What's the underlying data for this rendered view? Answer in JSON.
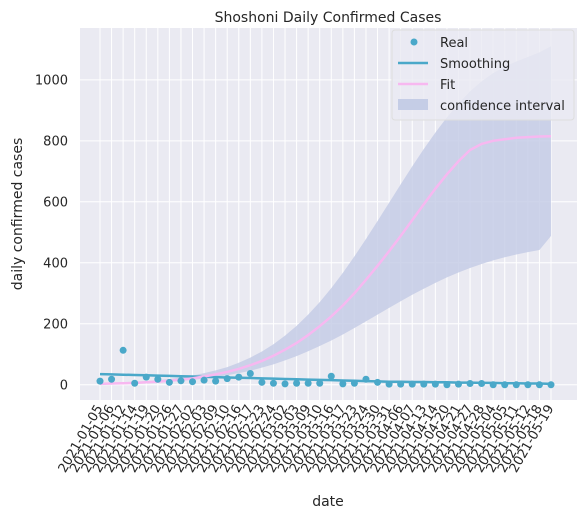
{
  "chart_data": {
    "type": "scatter",
    "title": "Shoshoni Daily Confirmed Cases",
    "xlabel": "date",
    "ylabel": "daily confirmed cases",
    "ylim": [
      -50,
      1170
    ],
    "yticks": [
      0,
      200,
      400,
      600,
      800,
      1000
    ],
    "grid": true,
    "legend_position": "top-right",
    "x": [
      "2021-01-05",
      "2021-01-06",
      "2021-01-12",
      "2021-01-14",
      "2021-01-19",
      "2021-01-20",
      "2021-01-26",
      "2021-01-27",
      "2021-02-02",
      "2021-02-03",
      "2021-02-09",
      "2021-02-10",
      "2021-02-16",
      "2021-02-17",
      "2021-02-23",
      "2021-02-24",
      "2021-03-02",
      "2021-03-03",
      "2021-03-09",
      "2021-03-10",
      "2021-03-16",
      "2021-03-17",
      "2021-03-23",
      "2021-03-24",
      "2021-03-30",
      "2021-03-31",
      "2021-04-06",
      "2021-04-07",
      "2021-04-13",
      "2021-04-14",
      "2021-04-20",
      "2021-04-21",
      "2021-04-27",
      "2021-04-28",
      "2021-05-04",
      "2021-05-05",
      "2021-05-11",
      "2021-05-12",
      "2021-05-18",
      "2021-05-19"
    ],
    "xtick_labels": [
      "2021-01-05",
      "2021-01-06",
      "2021-01-12",
      "2021-01-14",
      "2021-01-19",
      "2021-01-20",
      "2021-01-26",
      "2021-01-27",
      "2021-02-02",
      "2021-02-03",
      "2021-02-09",
      "2021-02-10",
      "2021-02-16",
      "2021-02-17",
      "2021-02-23",
      "2021-02-24",
      "2021-03-02",
      "2021-03-03",
      "2021-03-09",
      "2021-03-10",
      "2021-03-16",
      "2021-03-17",
      "2021-03-23",
      "2021-03-24",
      "2021-03-30",
      "2021-03-31",
      "2021-04-06",
      "2021-04-07",
      "2021-04-13",
      "2021-04-14",
      "2021-04-20",
      "2021-04-21",
      "2021-04-27",
      "2021-04-28",
      "2021-05-04",
      "2021-05-05",
      "2021-05-11",
      "2021-05-12",
      "2021-05-18",
      "2021-05-19"
    ],
    "real": [
      12,
      18,
      113,
      5,
      25,
      18,
      8,
      13,
      10,
      15,
      12,
      20,
      25,
      37,
      8,
      5,
      3,
      5,
      5,
      5,
      28,
      3,
      5,
      18,
      8,
      2,
      2,
      2,
      2,
      2,
      0,
      2,
      4,
      4,
      0,
      0,
      0,
      0,
      0,
      0
    ],
    "smoothing": [
      35,
      34,
      33,
      32,
      31,
      30,
      29,
      28,
      27,
      26,
      25,
      24,
      23,
      22,
      21,
      20,
      19,
      18,
      17,
      16,
      15,
      14,
      13,
      12,
      11,
      10,
      10,
      9,
      9,
      8,
      8,
      7,
      7,
      6,
      6,
      5,
      5,
      4,
      4,
      3
    ],
    "fit": [
      3,
      4,
      5,
      6,
      8,
      10,
      13,
      17,
      21,
      27,
      34,
      42,
      52,
      64,
      78,
      95,
      115,
      137,
      163,
      192,
      224,
      260,
      300,
      344,
      390,
      438,
      488,
      540,
      592,
      643,
      690,
      733,
      770,
      790,
      800,
      805,
      810,
      812,
      814,
      815
    ],
    "ci_lower": [
      2,
      3,
      4,
      5,
      6,
      8,
      10,
      13,
      16,
      20,
      25,
      31,
      38,
      46,
      56,
      67,
      80,
      94,
      110,
      127,
      145,
      165,
      186,
      208,
      230,
      252,
      274,
      295,
      315,
      334,
      352,
      368,
      383,
      396,
      408,
      418,
      427,
      435,
      442,
      488
    ],
    "ci_upper": [
      5,
      6,
      8,
      10,
      12,
      15,
      19,
      24,
      30,
      38,
      47,
      58,
      72,
      89,
      109,
      133,
      161,
      193,
      230,
      271,
      317,
      367,
      421,
      478,
      537,
      597,
      657,
      716,
      773,
      827,
      877,
      922,
      962,
      995,
      1022,
      1043,
      1060,
      1075,
      1090,
      1110
    ],
    "series": [
      {
        "name": "Real",
        "color": "#4aa8c9"
      },
      {
        "name": "Smoothing",
        "color": "#4aa8c9"
      },
      {
        "name": "Fit",
        "color": "#f7b8f0"
      },
      {
        "name": "confidence interval",
        "color": "#c5cde6"
      }
    ]
  }
}
